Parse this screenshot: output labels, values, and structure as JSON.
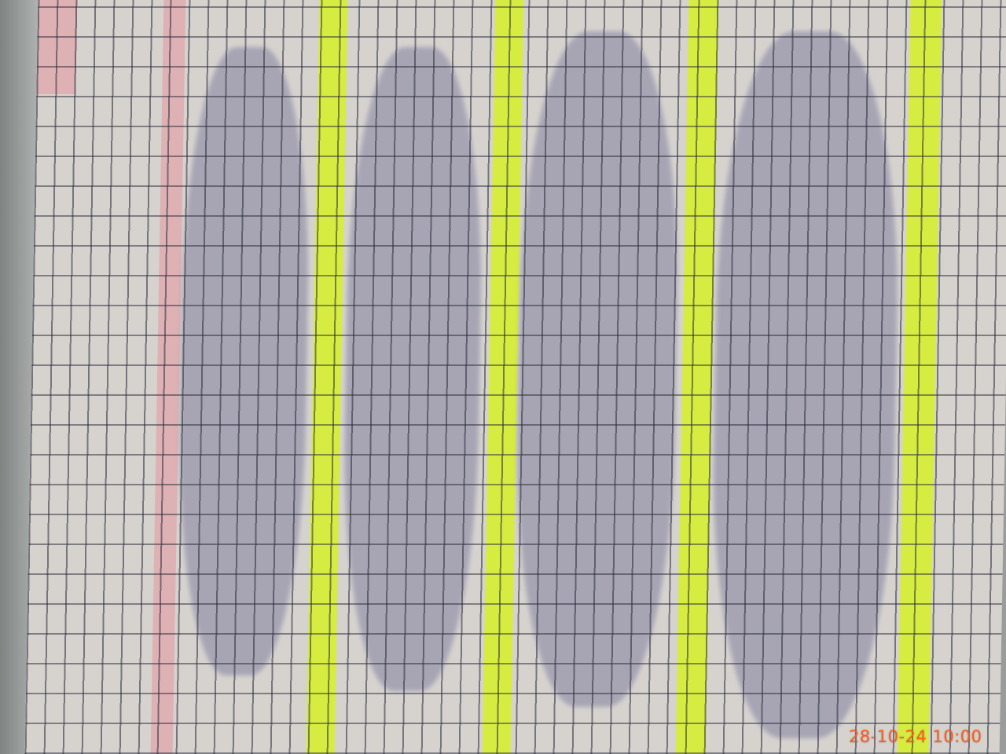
{
  "photo": {
    "timestamp": "28-10-24 10:00"
  }
}
